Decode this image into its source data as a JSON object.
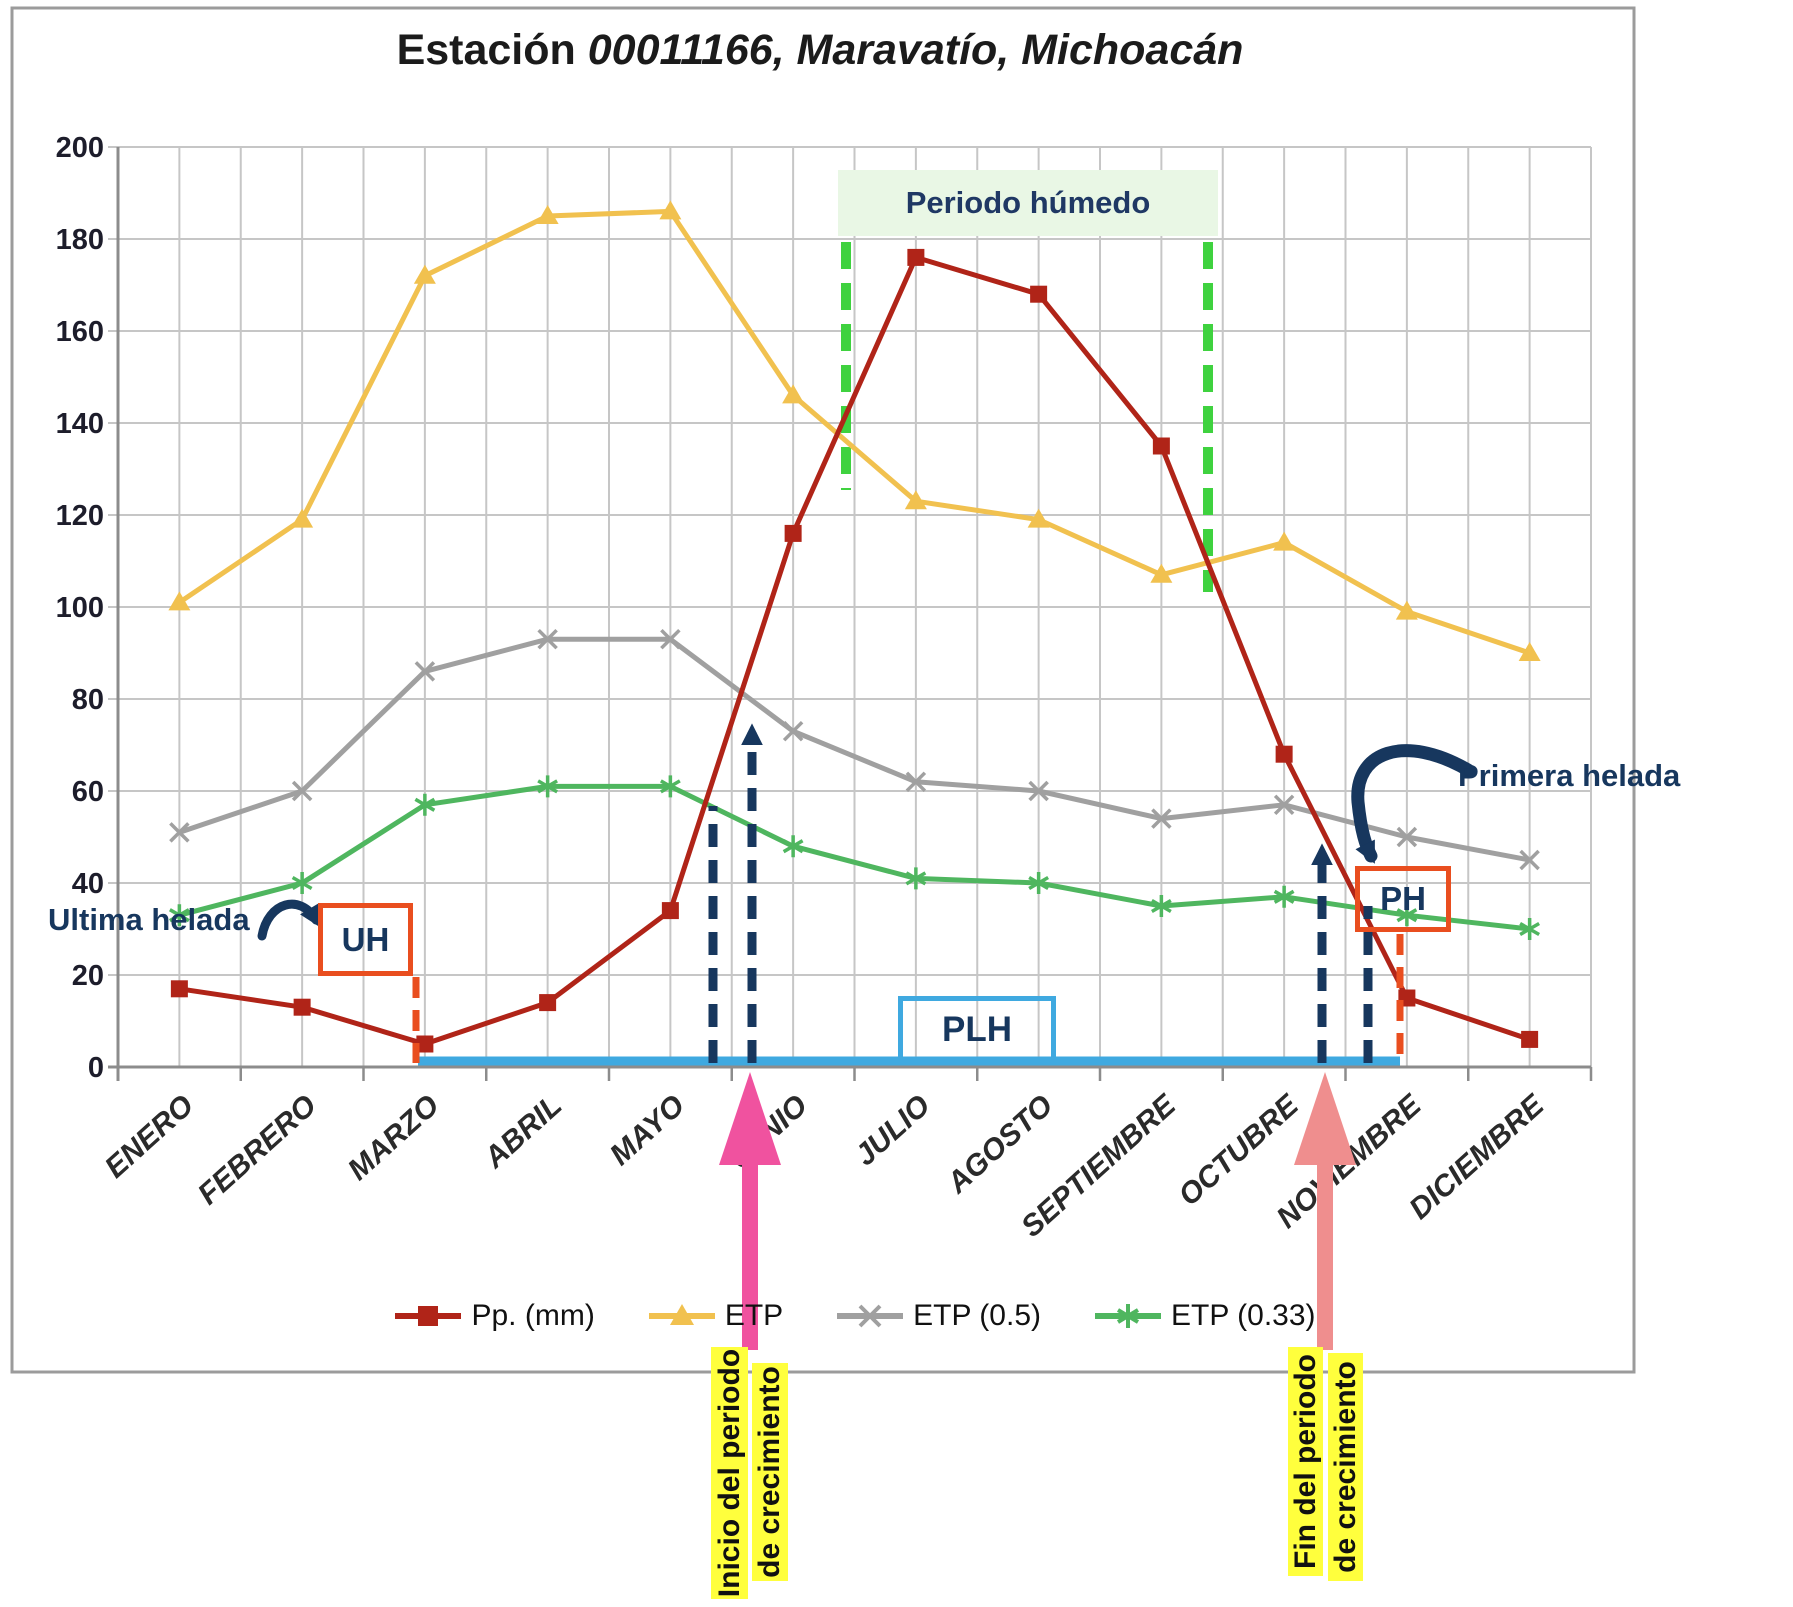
{
  "title": {
    "prefix": "Estación ",
    "emphasis": "00011166, Maravatío, Michoacán"
  },
  "chart_data": {
    "type": "line",
    "categories": [
      "ENERO",
      "FEBRERO",
      "MARZO",
      "ABRIL",
      "MAYO",
      "JUNIO",
      "JULIO",
      "AGOSTO",
      "SEPTIEMBRE",
      "OCTUBRE",
      "NOVIEMBRE",
      "DICIEMBRE"
    ],
    "series": [
      {
        "name": "Pp. (mm)",
        "color": "#b02418",
        "marker": "square",
        "values": [
          17,
          13,
          5,
          14,
          34,
          116,
          176,
          168,
          135,
          68,
          15,
          6
        ]
      },
      {
        "name": "ETP",
        "color": "#f1c14f",
        "marker": "triangle",
        "values": [
          101,
          119,
          172,
          185,
          186,
          146,
          123,
          119,
          107,
          114,
          99,
          90
        ]
      },
      {
        "name": "ETP (0.5)",
        "color": "#a0a0a0",
        "marker": "x",
        "values": [
          51,
          60,
          86,
          93,
          93,
          73,
          62,
          60,
          54,
          57,
          50,
          45
        ]
      },
      {
        "name": "ETP (0.33)",
        "color": "#4fb65f",
        "marker": "asterisk",
        "values": [
          33,
          40,
          57,
          61,
          61,
          48,
          41,
          40,
          35,
          37,
          33,
          30
        ]
      }
    ],
    "ylim": [
      0,
      200
    ],
    "ytick_step": 20,
    "grid": true,
    "legend_position": "bottom",
    "xlabel": "",
    "ylabel": ""
  },
  "annotations": {
    "periodo_humedo": "Periodo húmedo",
    "ultima_helada": "Ultima helada",
    "primera_helada": "Primera helada",
    "uh_label": "UH",
    "plh_label": "PLH",
    "ph_label": "PH",
    "inicio_line1": "Inicio del periodo",
    "inicio_line2": "de crecimiento",
    "fin_line1": "Fin del periodo",
    "fin_line2": "de crecimiento"
  },
  "colors": {
    "navy": "#17375e",
    "orange_red": "#e94e1f",
    "sky_blue": "#3fa9e0",
    "pink": "#f0529f",
    "salmon": "#ef8e8e",
    "dash_green": "#3fd23f",
    "band_green": "#e9f7e5",
    "highlight_yellow": "#ffff3d",
    "gridline": "#c6c6c6",
    "axis": "#8c8c8c",
    "border": "#9b9b9b"
  }
}
